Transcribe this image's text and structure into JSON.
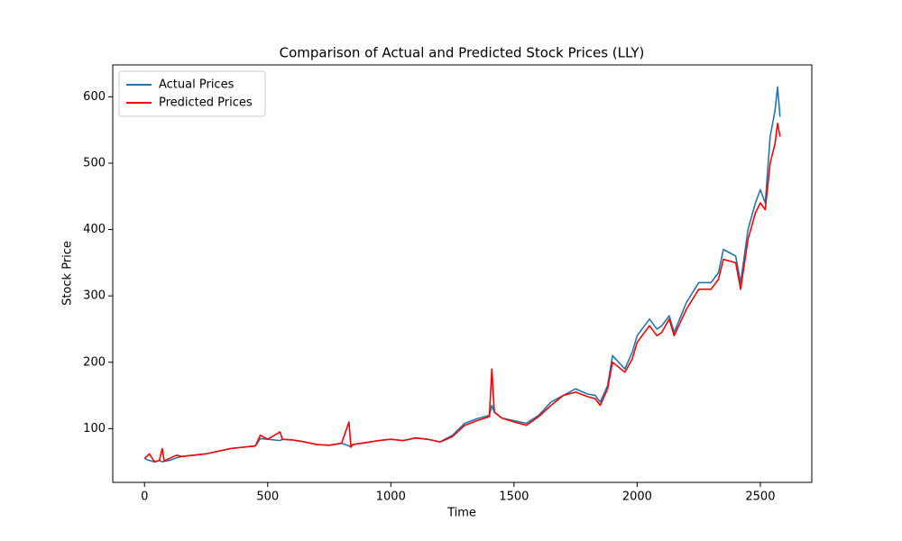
{
  "chart_data": {
    "type": "line",
    "title": "Comparison of Actual and Predicted Stock Prices (LLY)",
    "xlabel": "Time",
    "ylabel": "Stock Price",
    "x": [
      0,
      20,
      40,
      60,
      72,
      80,
      100,
      130,
      150,
      200,
      250,
      300,
      350,
      400,
      450,
      470,
      500,
      550,
      560,
      600,
      650,
      700,
      750,
      800,
      830,
      838,
      845,
      900,
      950,
      1000,
      1050,
      1100,
      1150,
      1200,
      1250,
      1300,
      1350,
      1400,
      1410,
      1420,
      1450,
      1500,
      1550,
      1600,
      1650,
      1700,
      1750,
      1800,
      1830,
      1850,
      1880,
      1900,
      1950,
      1980,
      2000,
      2050,
      2080,
      2100,
      2130,
      2150,
      2200,
      2250,
      2300,
      2330,
      2350,
      2400,
      2420,
      2450,
      2480,
      2500,
      2520,
      2540,
      2560,
      2570,
      2580
    ],
    "series": [
      {
        "name": "Actual Prices",
        "color": "#1f77b4",
        "values": [
          55,
          52,
          50,
          52,
          50,
          51,
          52,
          56,
          58,
          60,
          62,
          66,
          70,
          72,
          74,
          85,
          84,
          82,
          84,
          83,
          80,
          76,
          75,
          78,
          74,
          72,
          76,
          79,
          82,
          84,
          82,
          86,
          84,
          80,
          90,
          108,
          115,
          120,
          135,
          125,
          116,
          112,
          108,
          120,
          140,
          150,
          160,
          152,
          150,
          140,
          165,
          210,
          190,
          215,
          240,
          265,
          250,
          255,
          270,
          245,
          290,
          320,
          320,
          335,
          370,
          360,
          320,
          400,
          440,
          460,
          440,
          540,
          580,
          615,
          570
        ]
      },
      {
        "name": "Predicted Prices",
        "color": "#ff0000",
        "values": [
          55,
          62,
          50,
          52,
          70,
          51,
          55,
          60,
          58,
          60,
          62,
          66,
          70,
          72,
          74,
          90,
          84,
          95,
          84,
          83,
          80,
          76,
          75,
          78,
          110,
          72,
          76,
          79,
          82,
          84,
          82,
          86,
          84,
          80,
          88,
          105,
          112,
          118,
          190,
          125,
          116,
          110,
          105,
          118,
          135,
          150,
          155,
          148,
          145,
          135,
          160,
          200,
          185,
          205,
          230,
          255,
          240,
          245,
          265,
          240,
          280,
          310,
          310,
          325,
          355,
          350,
          310,
          385,
          425,
          440,
          430,
          500,
          530,
          560,
          540
        ]
      }
    ],
    "xlim": [
      -129,
      2709
    ],
    "ylim": [
      19,
      648
    ],
    "xticks": [
      0,
      500,
      1000,
      1500,
      2000,
      2500
    ],
    "yticks": [
      100,
      200,
      300,
      400,
      500,
      600
    ],
    "legend": "upper left"
  }
}
